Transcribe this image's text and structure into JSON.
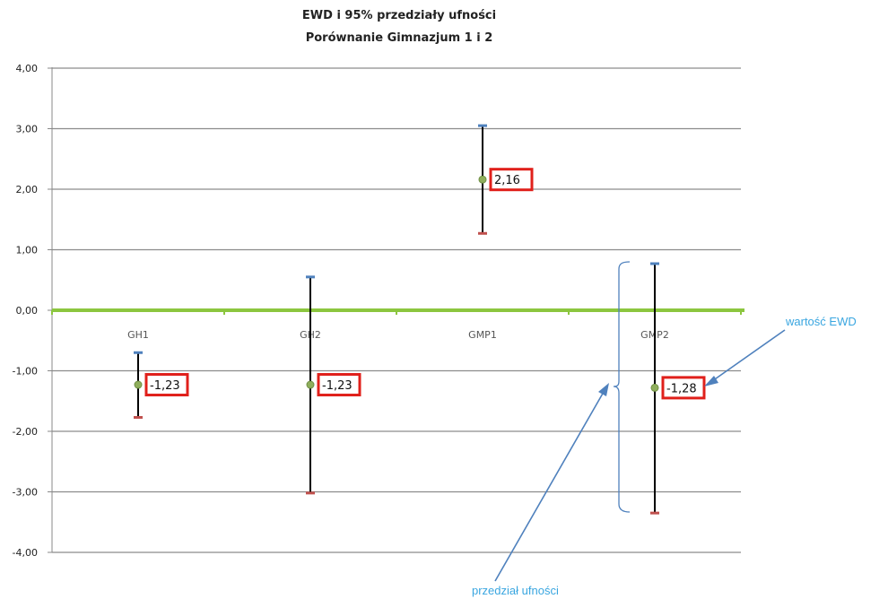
{
  "chart_data": {
    "type": "scatter",
    "title": [
      "EWD i 95% przedziały ufności",
      "Porównanie Gimnazjum 1 i 2"
    ],
    "xlabel": "",
    "ylabel": "",
    "categories": [
      "GH1",
      "GH2",
      "GMP1",
      "GMP2"
    ],
    "values": [
      -1.23,
      -1.23,
      2.16,
      -1.28
    ],
    "value_labels": [
      "-1,23",
      "-1,23",
      "2,16",
      "-1,28"
    ],
    "ci_upper": [
      -0.7,
      0.55,
      3.05,
      0.77
    ],
    "ci_lower": [
      -1.77,
      -3.02,
      1.27,
      -3.35
    ],
    "ylim": [
      -4,
      4
    ],
    "yticks": [
      4,
      3,
      2,
      1,
      0,
      -1,
      -2,
      -3,
      -4
    ],
    "ytick_labels": [
      "4,00",
      "3,00",
      "2,00",
      "1,00",
      "0,00",
      "-1,00",
      "-2,00",
      "-3,00",
      "-4,00"
    ],
    "grid": true,
    "legend": "none",
    "zero_line_color": "#8cc63f",
    "point_color": "#8fae5c",
    "label_box_color": "#e0201b",
    "upper_cap_color": "#4f81bd",
    "lower_cap_color": "#c0504d",
    "annotations": {
      "ewd_value": "wartość EWD",
      "confidence_interval": "przedział ufności"
    }
  }
}
